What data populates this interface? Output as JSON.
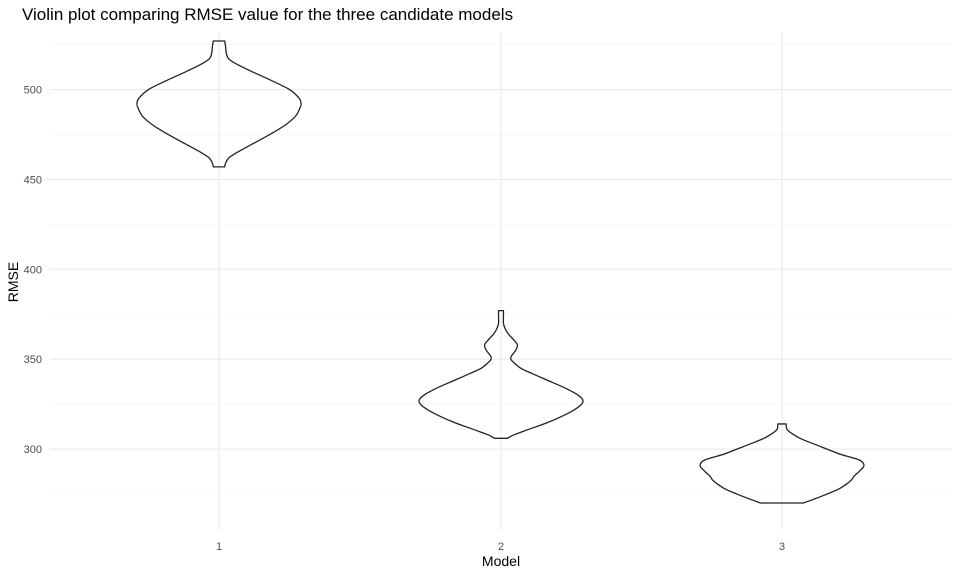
{
  "chart_data": {
    "type": "violin",
    "title": "Violin plot comparing RMSE value for the three candidate models",
    "xlabel": "Model",
    "ylabel": "RMSE",
    "categories": [
      "1",
      "2",
      "3"
    ],
    "ylim": [
      255,
      532
    ],
    "yticks": [
      300,
      350,
      400,
      450,
      500
    ],
    "ytick_labels": [
      "300",
      "350",
      "400",
      "450",
      "500"
    ],
    "grid": true,
    "legend": "none",
    "violins": [
      {
        "category": "1",
        "min": 457,
        "max": 527,
        "profile": [
          [
            457,
            0.07
          ],
          [
            459,
            0.08
          ],
          [
            462,
            0.12
          ],
          [
            465,
            0.22
          ],
          [
            470,
            0.42
          ],
          [
            475,
            0.62
          ],
          [
            480,
            0.8
          ],
          [
            485,
            0.93
          ],
          [
            490,
            0.99
          ],
          [
            492,
            1.0
          ],
          [
            495,
            0.98
          ],
          [
            500,
            0.86
          ],
          [
            505,
            0.64
          ],
          [
            510,
            0.4
          ],
          [
            514,
            0.22
          ],
          [
            517,
            0.12
          ],
          [
            520,
            0.09
          ],
          [
            524,
            0.08
          ],
          [
            527,
            0.07
          ]
        ]
      },
      {
        "category": "2",
        "min": 306,
        "max": 377,
        "profile": [
          [
            306,
            0.08
          ],
          [
            308,
            0.16
          ],
          [
            311,
            0.34
          ],
          [
            315,
            0.58
          ],
          [
            320,
            0.82
          ],
          [
            324,
            0.96
          ],
          [
            327,
            1.0
          ],
          [
            330,
            0.94
          ],
          [
            334,
            0.78
          ],
          [
            338,
            0.58
          ],
          [
            342,
            0.38
          ],
          [
            345,
            0.24
          ],
          [
            348,
            0.16
          ],
          [
            350,
            0.12
          ],
          [
            352,
            0.13
          ],
          [
            355,
            0.18
          ],
          [
            358,
            0.2
          ],
          [
            361,
            0.15
          ],
          [
            364,
            0.09
          ],
          [
            367,
            0.05
          ],
          [
            370,
            0.03
          ],
          [
            374,
            0.03
          ],
          [
            377,
            0.03
          ]
        ]
      },
      {
        "category": "3",
        "min": 270,
        "max": 314,
        "profile": [
          [
            270,
            0.26
          ],
          [
            272,
            0.38
          ],
          [
            275,
            0.55
          ],
          [
            278,
            0.7
          ],
          [
            281,
            0.8
          ],
          [
            283,
            0.85
          ],
          [
            285,
            0.88
          ],
          [
            288,
            0.95
          ],
          [
            291,
            1.0
          ],
          [
            294,
            0.94
          ],
          [
            297,
            0.72
          ],
          [
            300,
            0.55
          ],
          [
            303,
            0.38
          ],
          [
            306,
            0.22
          ],
          [
            309,
            0.11
          ],
          [
            311,
            0.06
          ],
          [
            314,
            0.05
          ]
        ]
      }
    ]
  }
}
